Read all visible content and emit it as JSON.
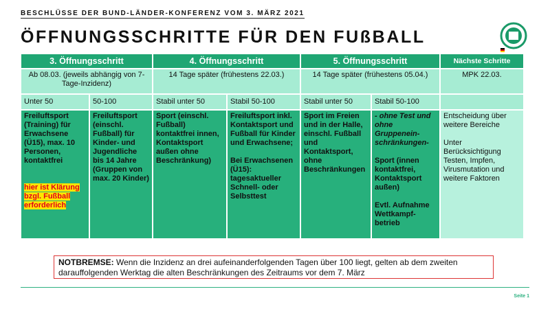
{
  "header": {
    "subtitle": "BESCHLÜSSE DER BUND-LÄNDER-KONFERENZ VOM 3. MÄRZ 2021",
    "title": "ÖFFNUNGSSCHRITTE FÜR DEN FUßBALL"
  },
  "table": {
    "steps": [
      "3. Öffnungsschritt",
      "4. Öffnungsschritt",
      "5. Öffnungsschritt",
      "Nächste Schritte"
    ],
    "dates": [
      "Ab 08.03. (jeweils abhängig von 7-Tage-Inzidenz)",
      "14 Tage später (frühestens 22.03.)",
      "14 Tage später (frühestens 05.04.)",
      "MPK 22.03."
    ],
    "levels": [
      "Unter 50",
      "50-100",
      "Stabil unter 50",
      "Stabil 50-100",
      "Stabil unter 50",
      "Stabil 50-100"
    ],
    "cells": [
      [
        "Freiluftsport (Training) für Erwachsene (Ü15), max. 10 Personen, kontaktfrei",
        "hier ist Klärung bzgl. Fußball erforderlich"
      ],
      [
        "Freiluftsport (einschl. Fußball) für Kinder- und Jugendliche bis 14 Jahre (Gruppen von max. 20 Kinder)"
      ],
      [
        "Sport (einschl. Fußball) kontaktfrei innen, Kontaktsport außen ohne Beschränkung)"
      ],
      [
        "Freiluftsport inkl. Kontaktsport und Fußball für Kinder und Erwachsene;",
        "Bei Erwachsenen (Ü15): tagesaktueller Schnell- oder Selbsttest"
      ],
      [
        "Sport im Freien und in der Halle, einschl. Fußball und Kontaktsport, ohne Beschränkungen"
      ],
      [
        "- ohne Test und ohne Gruppenein-schränkungen-",
        "Sport (innen kontaktfrei, Kontaktsport außen)",
        "Evtl. Aufnahme Wettkampf-betrieb"
      ],
      [
        "Entscheidung über weitere Bereiche",
        "Unter Berücksichtigung Testen, Impfen, Virusmutation und weitere Faktoren"
      ]
    ]
  },
  "notice": {
    "label": "NOTBREMSE:",
    "text": "Wenn die Inzidenz an drei aufeinanderfolgenden Tagen über 100 liegt, gelten ab dem zweiten darauffolgenden Werktag die alten Beschränkungen des Zeitraums vor dem 7. März"
  },
  "footer": {
    "page": "Seite 1"
  }
}
